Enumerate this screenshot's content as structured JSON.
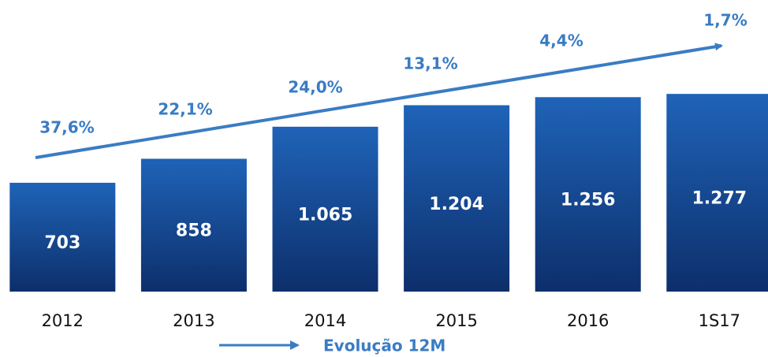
{
  "chart_data": {
    "type": "bar",
    "categories": [
      "2012",
      "2013",
      "2014",
      "2015",
      "2016",
      "1S17"
    ],
    "values": [
      703,
      858,
      1065,
      1204,
      1256,
      1277
    ],
    "value_labels": [
      "703",
      "858",
      "1.065",
      "1.204",
      "1.256",
      "1.277"
    ],
    "color": "#1a56a6",
    "ylim": [
      0,
      1400
    ],
    "growth": {
      "name": "Evolução 12M",
      "color": "#3a7cc4",
      "values": [
        37.6,
        22.1,
        24.0,
        13.1,
        4.4,
        1.7
      ],
      "value_labels": [
        "37,6%",
        "22,1%",
        "24,0%",
        "13,1%",
        "4,4%",
        "1,7%"
      ]
    }
  }
}
